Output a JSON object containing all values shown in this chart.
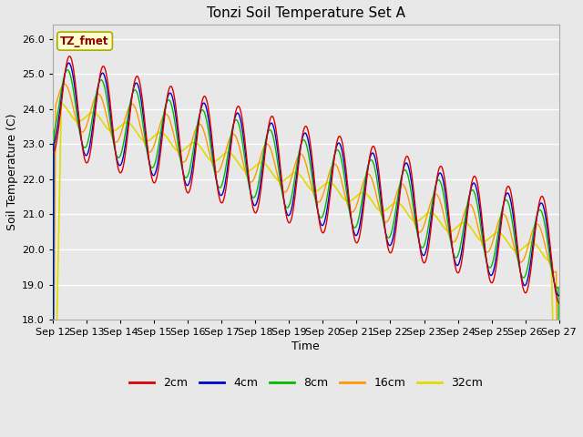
{
  "title": "Tonzi Soil Temperature Set A",
  "xlabel": "Time",
  "ylabel": "Soil Temperature (C)",
  "annotation": "TZ_fmet",
  "ylim": [
    18.0,
    26.4
  ],
  "yticks": [
    18.0,
    19.0,
    20.0,
    21.0,
    22.0,
    23.0,
    24.0,
    25.0,
    26.0
  ],
  "series_colors": {
    "2cm": "#dd0000",
    "4cm": "#0000cc",
    "8cm": "#00bb00",
    "16cm": "#ff9900",
    "32cm": "#dddd00"
  },
  "series_labels": [
    "2cm",
    "4cm",
    "8cm",
    "16cm",
    "32cm"
  ],
  "background_color": "#e8e8e8",
  "xtick_labels": [
    "Sep 12",
    "Sep 13",
    "Sep 14",
    "Sep 15",
    "Sep 16",
    "Sep 17",
    "Sep 18",
    "Sep 19",
    "Sep 20",
    "Sep 21",
    "Sep 22",
    "Sep 23",
    "Sep 24",
    "Sep 25",
    "Sep 26",
    "Sep 27"
  ],
  "figsize": [
    6.4,
    4.8
  ],
  "dpi": 100
}
